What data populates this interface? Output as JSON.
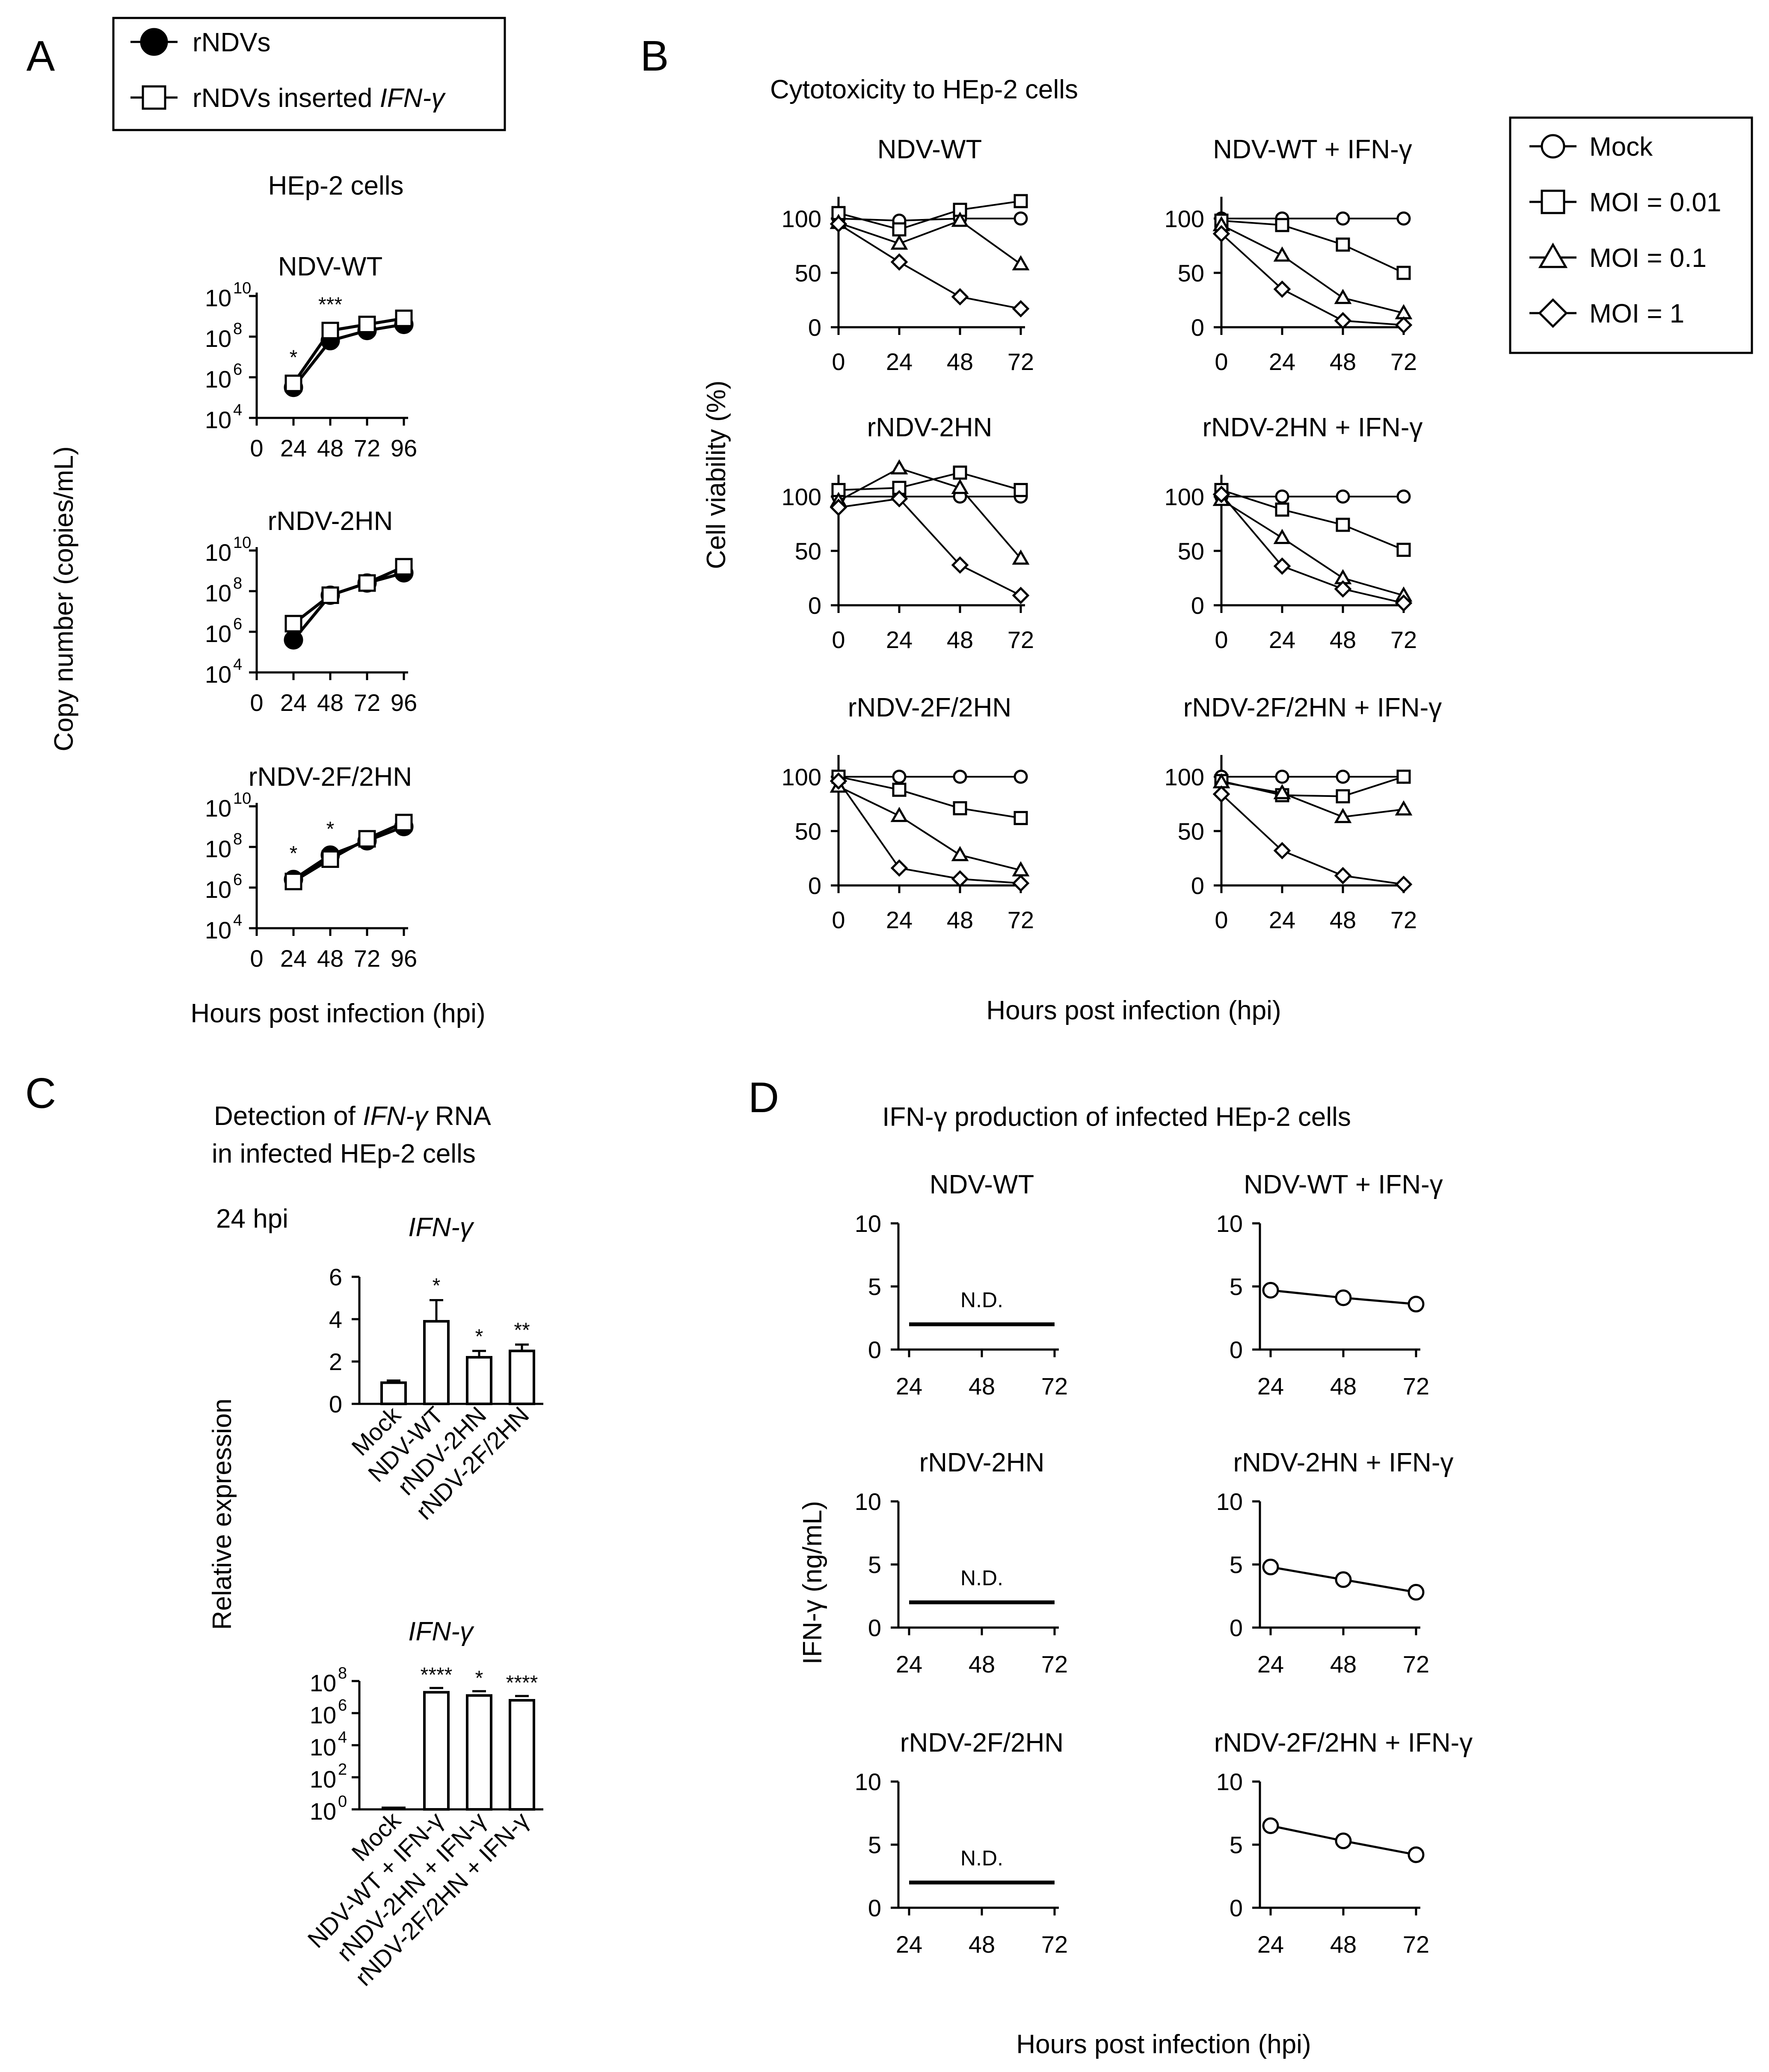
{
  "panels": {
    "A": {
      "label": "A",
      "legend": [
        {
          "marker": "filled-circle",
          "label": "rNDVs"
        },
        {
          "marker": "open-square",
          "label": "rNDVs inserted",
          "label_italic": "IFN-γ"
        }
      ],
      "heading": "HEp-2 cells",
      "ylabel": "Copy number (copies/mL)",
      "xlabel": "Hours post infection (hpi)",
      "y_tick_base": "10",
      "y_tick_exponents": [
        4,
        6,
        8,
        10
      ],
      "x_ticks": [
        "0",
        "24",
        "48",
        "72",
        "96"
      ]
    },
    "B": {
      "label": "B",
      "heading": "Cytotoxicity to HEp-2 cells",
      "ylabel": "Cell viability (%)",
      "xlabel": "Hours post infection (hpi)",
      "y_ticks": [
        "0",
        "50",
        "100"
      ],
      "x_ticks": [
        "0",
        "24",
        "48",
        "72"
      ],
      "legend": [
        {
          "marker": "open-circle",
          "label": "Mock"
        },
        {
          "marker": "open-square",
          "label": "MOI = 0.01"
        },
        {
          "marker": "open-triangle",
          "label": "MOI = 0.1"
        },
        {
          "marker": "open-diamond",
          "label": "MOI = 1"
        }
      ]
    },
    "C": {
      "label": "C",
      "heading_pre": "Detection of ",
      "heading_italic": "IFN-γ",
      "heading_post": " RNA",
      "heading_line2": "in infected HEp-2 cells",
      "time_label": "24 hpi",
      "ylabel": "Relative expression",
      "gene_label": "IFN-γ",
      "top_y_ticks": [
        "0",
        "2",
        "4",
        "6"
      ],
      "bottom_y_tick_base": "10",
      "bottom_y_exponents": [
        "0",
        "2",
        "4",
        "6",
        "8"
      ]
    },
    "D": {
      "label": "D",
      "heading": "IFN-γ production of infected HEp-2 cells",
      "ylabel": "IFN-γ (ng/mL)",
      "xlabel": "Hours post infection (hpi)",
      "y_ticks": [
        "0",
        "5",
        "10"
      ],
      "x_ticks": [
        "24",
        "48",
        "72"
      ],
      "nd_label": "N.D."
    }
  },
  "chart_data": [
    {
      "id": "A-growth",
      "type": "line",
      "y_scale": "log10",
      "ylim_log10": [
        4,
        10
      ],
      "x": [
        0,
        24,
        48,
        72,
        96
      ],
      "xlabel": "Hours post infection (hpi)",
      "ylabel": "Copy number (copies/mL)",
      "subplots": [
        {
          "title": "NDV-WT",
          "series": [
            {
              "name": "rNDVs",
              "x": [
                24,
                48,
                72,
                96
              ],
              "log10_values": [
                5.5,
                7.8,
                8.3,
                8.6
              ]
            },
            {
              "name": "rNDVs inserted IFN-γ",
              "x": [
                24,
                48,
                72,
                96
              ],
              "log10_values": [
                5.7,
                8.3,
                8.6,
                8.9
              ]
            }
          ],
          "annotations": [
            {
              "x": 24,
              "text": "*"
            },
            {
              "x": 48,
              "text": "***"
            }
          ]
        },
        {
          "title": "rNDV-2HN",
          "series": [
            {
              "name": "rNDVs",
              "x": [
                24,
                48,
                72,
                96
              ],
              "log10_values": [
                5.6,
                7.8,
                8.4,
                8.9
              ]
            },
            {
              "name": "rNDVs inserted IFN-γ",
              "x": [
                24,
                48,
                72,
                96
              ],
              "log10_values": [
                6.4,
                7.8,
                8.4,
                9.2
              ]
            }
          ],
          "annotations": []
        },
        {
          "title": "rNDV-2F/2HN",
          "series": [
            {
              "name": "rNDVs",
              "x": [
                24,
                48,
                72,
                96
              ],
              "log10_values": [
                6.4,
                7.6,
                8.3,
                9.0
              ]
            },
            {
              "name": "rNDVs inserted IFN-γ",
              "x": [
                24,
                48,
                72,
                96
              ],
              "log10_values": [
                6.3,
                7.4,
                8.4,
                9.2
              ]
            }
          ],
          "annotations": [
            {
              "x": 24,
              "text": "*"
            },
            {
              "x": 48,
              "text": "*"
            }
          ]
        }
      ]
    },
    {
      "id": "B-cytotoxicity",
      "type": "line",
      "title": "Cytotoxicity to HEp-2 cells",
      "x": [
        0,
        24,
        48,
        72
      ],
      "ylim": [
        0,
        120
      ],
      "xlabel": "Hours post infection (hpi)",
      "ylabel": "Cell viability (%)",
      "subplots": [
        {
          "title": "NDV-WT",
          "series": [
            {
              "name": "Mock",
              "values": [
                100,
                98,
                100,
                100
              ]
            },
            {
              "name": "MOI = 0.01",
              "values": [
                105,
                90,
                108,
                116
              ]
            },
            {
              "name": "MOI = 0.1",
              "values": [
                96,
                77,
                98,
                58
              ]
            },
            {
              "name": "MOI = 1",
              "values": [
                95,
                60,
                28,
                17
              ]
            }
          ]
        },
        {
          "title": "NDV-WT + IFN-γ",
          "series": [
            {
              "name": "Mock",
              "values": [
                100,
                100,
                100,
                100
              ]
            },
            {
              "name": "MOI = 0.01",
              "values": [
                98,
                94,
                76,
                50
              ]
            },
            {
              "name": "MOI = 0.1",
              "values": [
                94,
                66,
                27,
                13
              ]
            },
            {
              "name": "MOI = 1",
              "values": [
                86,
                35,
                6,
                2
              ]
            }
          ]
        },
        {
          "title": "rNDV-2HN",
          "series": [
            {
              "name": "Mock",
              "values": [
                100,
                100,
                100,
                100
              ]
            },
            {
              "name": "MOI = 0.01",
              "values": [
                106,
                108,
                122,
                106
              ]
            },
            {
              "name": "MOI = 0.1",
              "values": [
                96,
                126,
                108,
                43
              ]
            },
            {
              "name": "MOI = 1",
              "values": [
                90,
                98,
                37,
                9
              ]
            }
          ]
        },
        {
          "title": "rNDV-2HN + IFN-γ",
          "series": [
            {
              "name": "Mock",
              "values": [
                100,
                100,
                100,
                100
              ]
            },
            {
              "name": "MOI = 0.01",
              "values": [
                106,
                88,
                74,
                51
              ]
            },
            {
              "name": "MOI = 0.1",
              "values": [
                97,
                62,
                25,
                9
              ]
            },
            {
              "name": "MOI = 1",
              "values": [
                102,
                36,
                15,
                2
              ]
            }
          ]
        },
        {
          "title": "rNDV-2F/2HN",
          "series": [
            {
              "name": "Mock",
              "values": [
                100,
                100,
                100,
                100
              ]
            },
            {
              "name": "MOI = 0.01",
              "values": [
                100,
                88,
                71,
                62
              ]
            },
            {
              "name": "MOI = 0.1",
              "values": [
                91,
                64,
                28,
                14
              ]
            },
            {
              "name": "MOI = 1",
              "values": [
                96,
                16,
                6,
                2
              ]
            }
          ]
        },
        {
          "title": "rNDV-2F/2HN + IFN-γ",
          "series": [
            {
              "name": "Mock",
              "values": [
                100,
                100,
                100,
                100
              ]
            },
            {
              "name": "MOI = 0.01",
              "values": [
                96,
                83,
                82,
                100
              ]
            },
            {
              "name": "MOI = 0.1",
              "values": [
                95,
                85,
                63,
                70
              ]
            },
            {
              "name": "MOI = 1",
              "values": [
                84,
                32,
                9,
                1
              ]
            }
          ]
        }
      ]
    },
    {
      "id": "C-top",
      "type": "bar",
      "title": "IFN-γ",
      "categories": [
        "Mock",
        "NDV-WT",
        "rNDV-2HN",
        "rNDV-2F/2HN"
      ],
      "values": [
        1.0,
        3.9,
        2.2,
        2.5
      ],
      "errors": [
        0.1,
        1.0,
        0.3,
        0.3
      ],
      "significance": [
        "",
        "*",
        "*",
        "**"
      ],
      "ylim": [
        0,
        6
      ],
      "ylabel": "Relative expression"
    },
    {
      "id": "C-bottom",
      "type": "bar",
      "title": "IFN-γ",
      "y_scale": "log10",
      "categories": [
        "Mock",
        "NDV-WT + IFN-γ",
        "rNDV-2HN + IFN-γ",
        "rNDV-2F/2HN + IFN-γ"
      ],
      "log10_values": [
        0.0,
        7.3,
        7.1,
        6.8
      ],
      "significance": [
        "",
        "****",
        "*",
        "****"
      ],
      "ylim_log10": [
        0,
        8
      ],
      "ylabel": "Relative expression"
    },
    {
      "id": "D-production",
      "type": "line",
      "title": "IFN-γ production of infected HEp-2 cells",
      "x": [
        24,
        48,
        72
      ],
      "ylim": [
        0,
        10
      ],
      "xlabel": "Hours post infection (hpi)",
      "ylabel": "IFN-γ (ng/mL)",
      "subplots": [
        {
          "title": "NDV-WT",
          "nd": true,
          "nd_level": 2,
          "values": []
        },
        {
          "title": "NDV-WT + IFN-γ",
          "nd": false,
          "values": [
            4.7,
            4.1,
            3.6
          ]
        },
        {
          "title": "rNDV-2HN",
          "nd": true,
          "nd_level": 2,
          "values": []
        },
        {
          "title": "rNDV-2HN + IFN-γ",
          "nd": false,
          "values": [
            4.8,
            3.8,
            2.8
          ]
        },
        {
          "title": "rNDV-2F/2HN",
          "nd": true,
          "nd_level": 2,
          "values": []
        },
        {
          "title": "rNDV-2F/2HN + IFN-γ",
          "nd": false,
          "values": [
            6.5,
            5.3,
            4.2
          ]
        }
      ]
    }
  ]
}
